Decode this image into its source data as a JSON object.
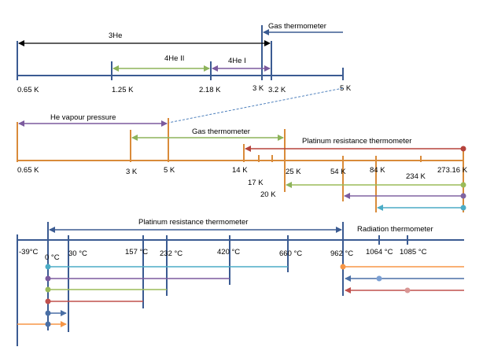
{
  "colors": {
    "axis_blue": "#3b5b92",
    "axis_orange": "#d98b3a",
    "black": "#000000",
    "green": "#8db35a",
    "purple": "#7b5a9e",
    "red": "#b5433c",
    "cyan": "#4bacc6",
    "teal_dash": "#4f81bd",
    "orange_line": "#f79646",
    "slate": "#4a6fa5",
    "rose": "#c0504d"
  },
  "panel1": {
    "labels": {
      "he3": "3He",
      "he4_ii": "4He II",
      "he4_i": "4He I",
      "gas_thermometer": "Gas thermometer"
    },
    "ticks": [
      "0.65 K",
      "1.25 K",
      "2.18 K",
      "3 K",
      "3.2 K",
      "5 K"
    ]
  },
  "panel2": {
    "labels": {
      "he_vapour": "He vapour pressure",
      "gas_thermometer": "Gas thermometer",
      "platinum": "Platinum resistance thermometer"
    },
    "ticks": [
      "0.65 K",
      "3 K",
      "5 K",
      "14 K",
      "17 K",
      "20 K",
      "25 K",
      "54 K",
      "84 K",
      "234 K",
      "273.16 K"
    ]
  },
  "panel3": {
    "labels": {
      "platinum": "Platinum resistance thermometer",
      "radiation": "Radiation thermometer"
    },
    "ticks": [
      "-39°C",
      "0 °C",
      "30 °C",
      "157 °C",
      "232 °C",
      "420 °C",
      "660 °C",
      "962 °C",
      "1064 °C",
      "1085 °C"
    ]
  }
}
